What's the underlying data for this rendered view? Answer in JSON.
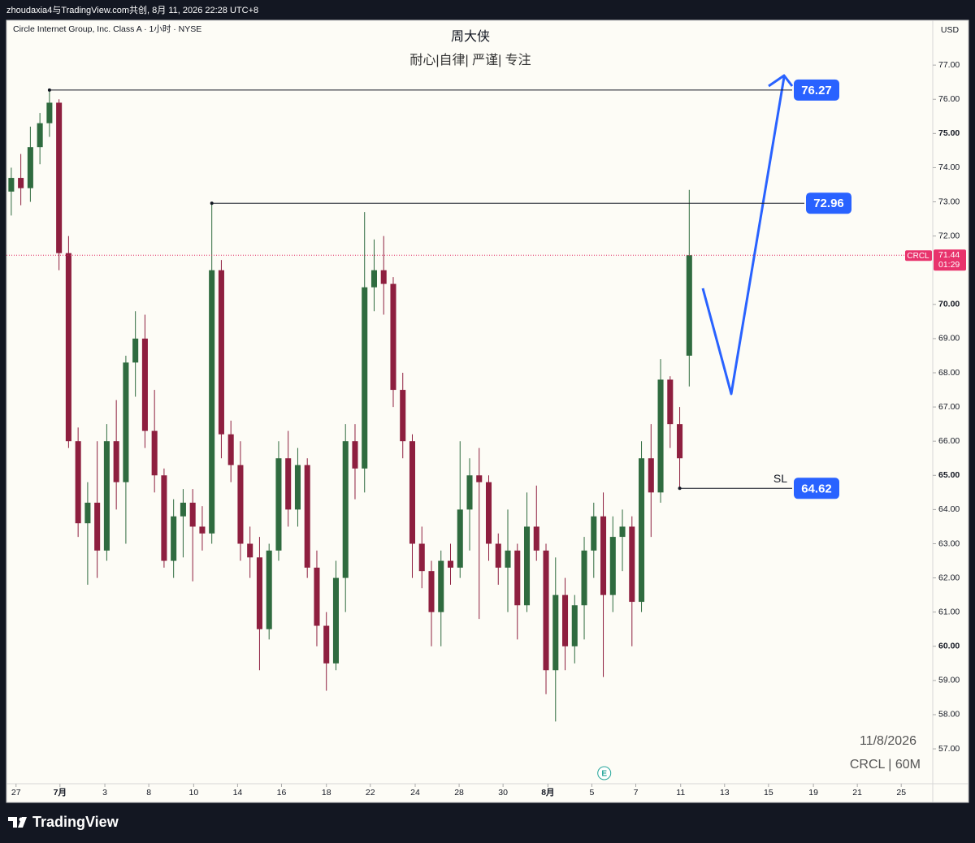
{
  "header": {
    "attribution": "zhoudaxia4与TradingView.com共创, 8月 11, 2026 22:28 UTC+8"
  },
  "footer": {
    "brand": "TradingView"
  },
  "chart_data": {
    "type": "candlestick",
    "title": "Circle Internet Group, Inc. Class A · 1小时 · NYSE",
    "annotation_title": "周大侠",
    "subtitle": "耐心|自律| 严谨| 专注",
    "currency": "USD",
    "notes": [
      "11/8/2026",
      "CRCL | 60M"
    ],
    "up_color": "#2f6b3f",
    "down_color": "#8e1f3f",
    "grid": false,
    "x": [
      0,
      1,
      2,
      3,
      4,
      5,
      6,
      7,
      8,
      9,
      10,
      11,
      12,
      13,
      14,
      15,
      16,
      17,
      18,
      19,
      20,
      21,
      22,
      23,
      24,
      25,
      26,
      27,
      28,
      29,
      30,
      31,
      32,
      33,
      34,
      35,
      36,
      37,
      38,
      39,
      40,
      41,
      42,
      43,
      44,
      45,
      46,
      47,
      48,
      49,
      50,
      51,
      52,
      53,
      54,
      55,
      56,
      57,
      58,
      59,
      60,
      61,
      62,
      63,
      64,
      65,
      66,
      67,
      68,
      69,
      70,
      71
    ],
    "open": [
      73.3,
      73.7,
      73.4,
      74.6,
      75.3,
      75.9,
      71.5,
      66.0,
      63.6,
      64.2,
      62.8,
      66.0,
      64.8,
      68.3,
      69.0,
      66.3,
      65.0,
      62.5,
      63.8,
      64.2,
      63.5,
      63.3,
      71.0,
      66.2,
      65.3,
      63.0,
      62.6,
      60.5,
      62.8,
      65.5,
      64.0,
      65.3,
      62.3,
      60.6,
      59.5,
      62.0,
      66.0,
      65.2,
      70.5,
      71.0,
      70.6,
      67.5,
      66.0,
      63.0,
      62.2,
      61.0,
      62.5,
      62.3,
      64.0,
      65.0,
      64.8,
      63.0,
      62.3,
      62.8,
      61.2,
      63.5,
      62.8,
      59.3,
      61.5,
      60.0,
      61.2,
      62.8,
      63.8,
      61.5,
      63.2,
      63.5,
      61.3,
      65.5,
      64.5,
      67.8,
      66.5,
      68.5
    ],
    "high": [
      74.0,
      74.4,
      75.2,
      75.6,
      76.27,
      76.0,
      72.0,
      66.4,
      64.8,
      66.0,
      66.5,
      67.2,
      68.5,
      69.8,
      69.7,
      67.5,
      65.2,
      64.3,
      64.6,
      64.6,
      64.1,
      72.96,
      71.3,
      66.6,
      66.0,
      63.5,
      63.2,
      63.0,
      66.0,
      66.3,
      65.8,
      65.5,
      62.8,
      61.0,
      62.5,
      66.5,
      66.5,
      72.7,
      71.9,
      72.0,
      70.8,
      68.0,
      66.2,
      63.5,
      62.5,
      62.8,
      63.0,
      66.0,
      65.5,
      65.8,
      65.0,
      63.3,
      64.0,
      63.0,
      64.5,
      64.7,
      63.0,
      62.6,
      62.0,
      61.5,
      63.2,
      64.2,
      64.5,
      63.8,
      64.0,
      63.8,
      66.0,
      66.5,
      68.4,
      67.9,
      67.0,
      73.35
    ],
    "low": [
      72.6,
      72.9,
      73.0,
      74.1,
      74.9,
      71.0,
      65.8,
      63.2,
      61.8,
      62.0,
      62.5,
      64.0,
      63.0,
      67.3,
      65.8,
      64.5,
      62.3,
      62.0,
      62.6,
      61.9,
      62.8,
      63.0,
      65.5,
      64.8,
      62.5,
      62.0,
      59.3,
      60.2,
      62.5,
      63.5,
      63.5,
      62.0,
      60.0,
      58.7,
      59.3,
      61.0,
      64.3,
      64.5,
      69.8,
      69.7,
      67.0,
      65.5,
      62.0,
      61.7,
      60.0,
      60.0,
      61.8,
      62.0,
      62.8,
      60.8,
      62.5,
      61.8,
      61.0,
      60.2,
      61.0,
      62.5,
      58.6,
      57.8,
      59.3,
      59.5,
      60.2,
      62.0,
      59.1,
      61.0,
      62.2,
      60.0,
      61.0,
      63.2,
      64.2,
      65.8,
      64.62,
      67.6
    ],
    "close": [
      73.7,
      73.4,
      74.6,
      75.3,
      75.9,
      71.5,
      66.0,
      63.6,
      64.2,
      62.8,
      66.0,
      64.8,
      68.3,
      69.0,
      66.3,
      65.0,
      62.5,
      63.8,
      64.2,
      63.5,
      63.3,
      71.0,
      66.2,
      65.3,
      63.0,
      62.6,
      60.5,
      62.8,
      65.5,
      64.0,
      65.3,
      62.3,
      60.6,
      59.5,
      62.0,
      66.0,
      65.2,
      70.5,
      71.0,
      70.6,
      67.5,
      66.0,
      63.0,
      62.2,
      61.0,
      62.5,
      62.3,
      64.0,
      65.0,
      64.8,
      63.0,
      62.3,
      62.8,
      61.2,
      63.5,
      62.8,
      59.3,
      61.5,
      60.0,
      61.2,
      62.8,
      63.8,
      61.5,
      63.2,
      63.5,
      61.3,
      65.5,
      64.5,
      67.8,
      66.5,
      65.5,
      71.44
    ],
    "xlim": [
      -0.5,
      96.5
    ],
    "xticks": [
      {
        "value": 0.5,
        "label": "27"
      },
      {
        "value": 5.1,
        "label": "7月"
      },
      {
        "value": 9.8,
        "label": "3"
      },
      {
        "value": 14.4,
        "label": "8"
      },
      {
        "value": 19.1,
        "label": "10"
      },
      {
        "value": 23.7,
        "label": "14"
      },
      {
        "value": 28.3,
        "label": "16"
      },
      {
        "value": 33.0,
        "label": "18"
      },
      {
        "value": 37.6,
        "label": "22"
      },
      {
        "value": 42.3,
        "label": "24"
      },
      {
        "value": 46.9,
        "label": "28"
      },
      {
        "value": 51.5,
        "label": "30"
      },
      {
        "value": 56.2,
        "label": "8月"
      },
      {
        "value": 60.8,
        "label": "5"
      },
      {
        "value": 65.4,
        "label": "7"
      },
      {
        "value": 70.1,
        "label": "11"
      },
      {
        "value": 74.7,
        "label": "13"
      },
      {
        "value": 79.3,
        "label": "15"
      },
      {
        "value": 84.0,
        "label": "19"
      },
      {
        "value": 88.6,
        "label": "21"
      },
      {
        "value": 93.2,
        "label": "25"
      }
    ],
    "ylim": [
      55.98,
      78.31
    ],
    "yticks": [
      {
        "value": 57,
        "label": "57.00"
      },
      {
        "value": 58,
        "label": "58.00"
      },
      {
        "value": 59,
        "label": "59.00"
      },
      {
        "value": 60,
        "label": "60.00"
      },
      {
        "value": 61,
        "label": "61.00"
      },
      {
        "value": 62,
        "label": "62.00"
      },
      {
        "value": 63,
        "label": "63.00"
      },
      {
        "value": 64,
        "label": "64.00"
      },
      {
        "value": 65,
        "label": "65.00"
      },
      {
        "value": 66,
        "label": "66.00"
      },
      {
        "value": 67,
        "label": "67.00"
      },
      {
        "value": 68,
        "label": "68.00"
      },
      {
        "value": 69,
        "label": "69.00"
      },
      {
        "value": 70,
        "label": "70.00"
      },
      {
        "value": 72,
        "label": "72.00"
      },
      {
        "value": 73,
        "label": "73.00"
      },
      {
        "value": 74,
        "label": "74.00"
      },
      {
        "value": 75,
        "label": "75.00"
      },
      {
        "value": 76,
        "label": "76.00"
      },
      {
        "value": 77,
        "label": "77.00"
      }
    ],
    "levels": [
      {
        "value": 76.27
      },
      {
        "value": 72.96
      },
      {
        "label": "SL",
        "value": 64.62
      }
    ],
    "last_price": {
      "symbol": "CRCL",
      "value": 71.44,
      "countdown": "01:29"
    },
    "events": [
      {
        "label": "E",
        "x": 62.1
      }
    ]
  }
}
